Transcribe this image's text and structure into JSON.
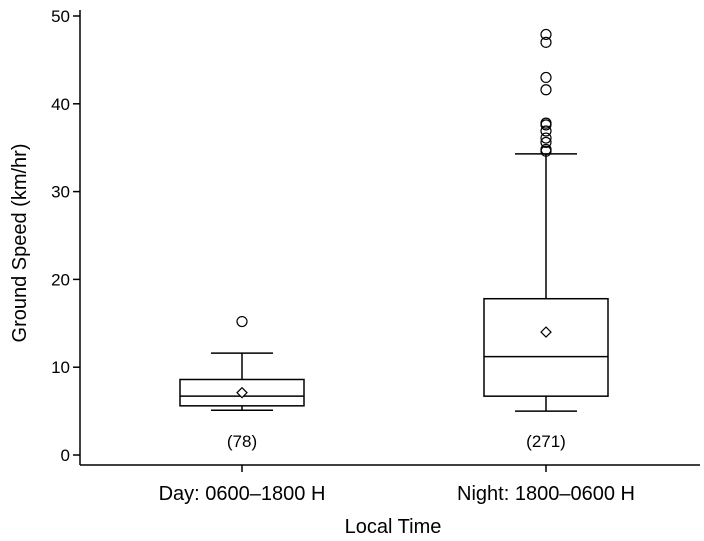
{
  "chart_data": {
    "type": "boxplot",
    "title": "",
    "xlabel": "Local Time",
    "ylabel": "Ground Speed (km/hr)",
    "ylim": [
      0,
      50
    ],
    "yticks": [
      "0",
      "10",
      "20",
      "30",
      "40",
      "50"
    ],
    "grid": false,
    "categories": [
      "Day: 0600–1800 H",
      "Night: 1800–0600 H"
    ],
    "boxes": [
      {
        "category": "Day: 0600–1800 H",
        "n_label": "(78)",
        "whisker_low": 5.1,
        "q1": 5.6,
        "median": 6.7,
        "q3": 8.6,
        "whisker_high": 11.6,
        "mean": 7.1,
        "outliers": [
          15.2
        ]
      },
      {
        "category": "Night: 1800–0600 H",
        "n_label": "(271)",
        "whisker_low": 5.0,
        "q1": 6.7,
        "median": 11.2,
        "q3": 17.8,
        "whisker_high": 34.3,
        "mean": 14.0,
        "outliers": [
          34.6,
          34.8,
          35.6,
          36.1,
          36.9,
          37.6,
          37.8,
          41.6,
          43.0,
          47.0,
          47.9
        ]
      }
    ]
  }
}
